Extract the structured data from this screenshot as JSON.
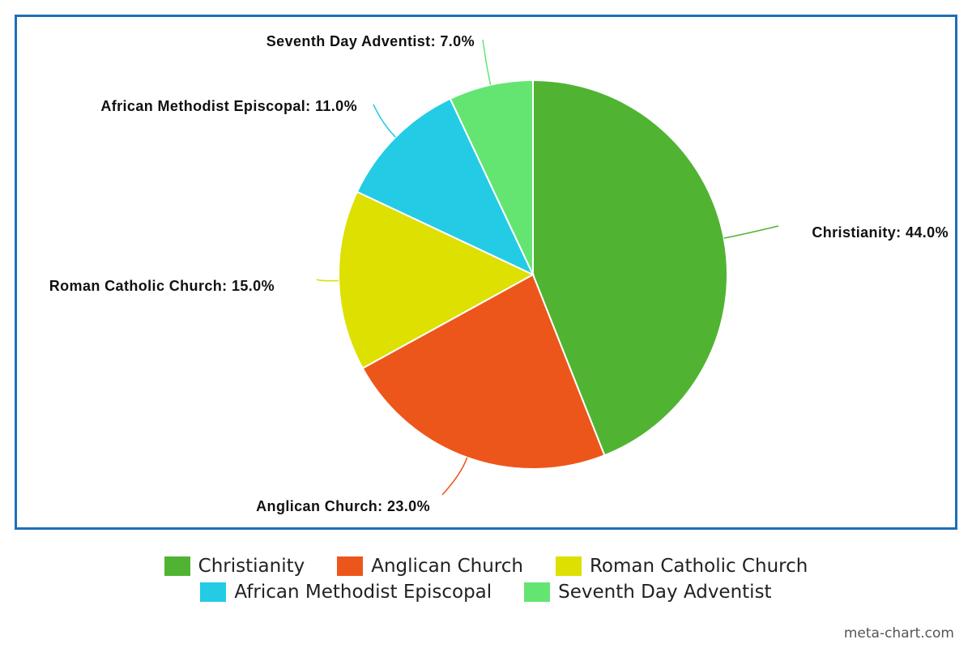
{
  "chart_data": {
    "type": "pie",
    "slices": [
      {
        "name": "Christianity",
        "value": 44.0,
        "label": "Christianity: 44.0%",
        "color": "#50b432"
      },
      {
        "name": "Anglican Church",
        "value": 23.0,
        "label": "Anglican Church: 23.0%",
        "color": "#ed561b"
      },
      {
        "name": "Roman Catholic Church",
        "value": 15.0,
        "label": "Roman Catholic Church: 15.0%",
        "color": "#dde000"
      },
      {
        "name": "African Methodist Episcopal",
        "value": 11.0,
        "label": "African Methodist Episcopal: 11.0%",
        "color": "#24cbe5"
      },
      {
        "name": "Seventh Day Adventist",
        "value": 7.0,
        "label": "Seventh Day Adventist: 7.0%",
        "color": "#64e572"
      }
    ],
    "legend_position": "bottom",
    "border_color": "#1f6fb5"
  },
  "legend": {
    "items": [
      {
        "label": "Christianity",
        "color": "#50b432"
      },
      {
        "label": "Anglican Church",
        "color": "#ed561b"
      },
      {
        "label": "Roman Catholic Church",
        "color": "#dde000"
      },
      {
        "label": "African Methodist Episcopal",
        "color": "#24cbe5"
      },
      {
        "label": "Seventh Day Adventist",
        "color": "#64e572"
      }
    ]
  },
  "watermark": "meta-chart.com"
}
